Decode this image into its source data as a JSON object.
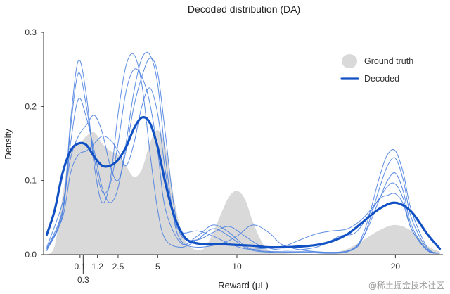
{
  "chart_data": {
    "type": "area",
    "title": "Decoded distribution (DA)",
    "xlabel": "Reward (μL)",
    "ylabel": "Density",
    "ylim": [
      0,
      0.3
    ],
    "yticks": [
      {
        "value": 0.0,
        "label": "0.0"
      },
      {
        "value": 0.1,
        "label": "0.1"
      },
      {
        "value": 0.2,
        "label": "0.2"
      },
      {
        "value": 0.3,
        "label": "0.3"
      }
    ],
    "xtick_labels": [
      {
        "label": "0.1",
        "x": 0.1
      },
      {
        "label": "0.3",
        "x": 0.3
      },
      {
        "label": "1.2",
        "x": 1.2
      },
      {
        "label": "2.5",
        "x": 2.5
      },
      {
        "label": "5",
        "x": 5
      },
      {
        "label": "10",
        "x": 10
      },
      {
        "label": "20",
        "x": 20
      }
    ],
    "legend": {
      "placement": "top-right"
    },
    "ground_truth": {
      "name": "Ground truth",
      "color": "#d9d9d9",
      "points": [
        [
          -2.0,
          0.0
        ],
        [
          -1.5,
          0.012
        ],
        [
          -1.0,
          0.08
        ],
        [
          -0.5,
          0.14
        ],
        [
          0.1,
          0.15
        ],
        [
          0.5,
          0.16
        ],
        [
          1.0,
          0.165
        ],
        [
          1.5,
          0.15
        ],
        [
          2.0,
          0.14
        ],
        [
          2.5,
          0.135
        ],
        [
          3.0,
          0.12
        ],
        [
          3.5,
          0.105
        ],
        [
          4.0,
          0.115
        ],
        [
          4.5,
          0.15
        ],
        [
          5.0,
          0.168
        ],
        [
          5.5,
          0.145
        ],
        [
          6.0,
          0.08
        ],
        [
          6.5,
          0.03
        ],
        [
          7.0,
          0.012
        ],
        [
          7.5,
          0.006
        ],
        [
          8.0,
          0.01
        ],
        [
          8.5,
          0.03
        ],
        [
          9.0,
          0.055
        ],
        [
          9.5,
          0.078
        ],
        [
          10.0,
          0.086
        ],
        [
          10.5,
          0.075
        ],
        [
          11.0,
          0.045
        ],
        [
          11.5,
          0.02
        ],
        [
          12.0,
          0.006
        ],
        [
          13.0,
          0.002
        ],
        [
          14.0,
          0.001
        ],
        [
          15.0,
          0.001
        ],
        [
          16.0,
          0.002
        ],
        [
          17.0,
          0.008
        ],
        [
          18.0,
          0.02
        ],
        [
          19.0,
          0.033
        ],
        [
          20.0,
          0.04
        ],
        [
          21.0,
          0.032
        ],
        [
          22.0,
          0.012
        ],
        [
          22.8,
          0.004
        ]
      ]
    },
    "decoded": {
      "name": "Decoded",
      "color": "#1151c4",
      "points": [
        [
          -2.0,
          0.027
        ],
        [
          -1.5,
          0.06
        ],
        [
          -1.0,
          0.11
        ],
        [
          -0.5,
          0.14
        ],
        [
          0.0,
          0.15
        ],
        [
          0.5,
          0.148
        ],
        [
          1.0,
          0.132
        ],
        [
          1.5,
          0.12
        ],
        [
          2.0,
          0.12
        ],
        [
          2.5,
          0.128
        ],
        [
          3.0,
          0.145
        ],
        [
          3.5,
          0.17
        ],
        [
          4.0,
          0.185
        ],
        [
          4.5,
          0.178
        ],
        [
          5.0,
          0.145
        ],
        [
          5.5,
          0.095
        ],
        [
          6.0,
          0.055
        ],
        [
          6.5,
          0.03
        ],
        [
          7.0,
          0.018
        ],
        [
          8.0,
          0.014
        ],
        [
          9.0,
          0.014
        ],
        [
          10.0,
          0.013
        ],
        [
          11.0,
          0.012
        ],
        [
          12.0,
          0.01
        ],
        [
          13.0,
          0.01
        ],
        [
          14.0,
          0.011
        ],
        [
          15.0,
          0.013
        ],
        [
          16.0,
          0.018
        ],
        [
          17.0,
          0.028
        ],
        [
          18.0,
          0.045
        ],
        [
          19.0,
          0.062
        ],
        [
          20.0,
          0.07
        ],
        [
          21.0,
          0.058
        ],
        [
          22.0,
          0.028
        ],
        [
          22.8,
          0.008
        ]
      ]
    },
    "individual_runs": {
      "color": "#4a7fe0",
      "series": [
        {
          "points": [
            [
              -2.0,
              0.005
            ],
            [
              -1.0,
              0.06
            ],
            [
              -0.5,
              0.18
            ],
            [
              0.0,
              0.262
            ],
            [
              0.5,
              0.215
            ],
            [
              1.0,
              0.12
            ],
            [
              1.5,
              0.07
            ],
            [
              2.0,
              0.1
            ],
            [
              2.5,
              0.19
            ],
            [
              3.0,
              0.255
            ],
            [
              3.5,
              0.27
            ],
            [
              4.0,
              0.23
            ],
            [
              4.5,
              0.14
            ],
            [
              5.0,
              0.06
            ],
            [
              5.5,
              0.02
            ],
            [
              6.5,
              0.01
            ],
            [
              7.5,
              0.02
            ],
            [
              8.5,
              0.035
            ],
            [
              9.5,
              0.025
            ],
            [
              10.5,
              0.01
            ],
            [
              11.5,
              0.004
            ],
            [
              14.0,
              0.003
            ],
            [
              17.0,
              0.004
            ],
            [
              18.0,
              0.03
            ],
            [
              19.0,
              0.105
            ],
            [
              19.5,
              0.135
            ],
            [
              20.0,
              0.14
            ],
            [
              20.5,
              0.11
            ],
            [
              21.0,
              0.06
            ],
            [
              22.0,
              0.01
            ],
            [
              22.8,
              0.002
            ]
          ]
        },
        {
          "points": [
            [
              -2.0,
              0.006
            ],
            [
              -1.0,
              0.055
            ],
            [
              -0.5,
              0.17
            ],
            [
              0.0,
              0.245
            ],
            [
              0.5,
              0.2
            ],
            [
              1.0,
              0.13
            ],
            [
              1.5,
              0.085
            ],
            [
              2.0,
              0.095
            ],
            [
              2.5,
              0.15
            ],
            [
              3.0,
              0.22
            ],
            [
              3.5,
              0.25
            ],
            [
              4.0,
              0.24
            ],
            [
              4.5,
              0.205
            ],
            [
              5.0,
              0.14
            ],
            [
              5.5,
              0.06
            ],
            [
              6.5,
              0.015
            ],
            [
              7.5,
              0.025
            ],
            [
              8.5,
              0.04
            ],
            [
              9.5,
              0.03
            ],
            [
              10.5,
              0.012
            ],
            [
              11.5,
              0.005
            ],
            [
              14.0,
              0.004
            ],
            [
              17.0,
              0.005
            ],
            [
              18.0,
              0.025
            ],
            [
              19.0,
              0.09
            ],
            [
              19.5,
              0.12
            ],
            [
              20.0,
              0.13
            ],
            [
              20.5,
              0.1
            ],
            [
              21.0,
              0.05
            ],
            [
              22.0,
              0.008
            ],
            [
              22.8,
              0.002
            ]
          ]
        },
        {
          "points": [
            [
              -2.0,
              0.008
            ],
            [
              -1.0,
              0.06
            ],
            [
              -0.5,
              0.15
            ],
            [
              0.0,
              0.21
            ],
            [
              0.5,
              0.185
            ],
            [
              1.0,
              0.14
            ],
            [
              1.5,
              0.09
            ],
            [
              2.0,
              0.07
            ],
            [
              2.5,
              0.09
            ],
            [
              3.0,
              0.15
            ],
            [
              3.5,
              0.22
            ],
            [
              4.0,
              0.265
            ],
            [
              4.5,
              0.27
            ],
            [
              5.0,
              0.23
            ],
            [
              5.5,
              0.13
            ],
            [
              6.0,
              0.05
            ],
            [
              6.5,
              0.018
            ],
            [
              7.5,
              0.01
            ],
            [
              9.0,
              0.015
            ],
            [
              10.0,
              0.025
            ],
            [
              11.0,
              0.04
            ],
            [
              12.0,
              0.03
            ],
            [
              13.0,
              0.012
            ],
            [
              15.0,
              0.004
            ],
            [
              17.0,
              0.005
            ],
            [
              18.0,
              0.025
            ],
            [
              19.0,
              0.075
            ],
            [
              19.5,
              0.1
            ],
            [
              20.0,
              0.11
            ],
            [
              20.5,
              0.085
            ],
            [
              21.0,
              0.04
            ],
            [
              22.0,
              0.006
            ],
            [
              22.8,
              0.002
            ]
          ]
        },
        {
          "points": [
            [
              -2.0,
              0.01
            ],
            [
              -1.0,
              0.07
            ],
            [
              -0.5,
              0.13
            ],
            [
              0.0,
              0.16
            ],
            [
              0.5,
              0.175
            ],
            [
              1.0,
              0.188
            ],
            [
              1.5,
              0.165
            ],
            [
              2.0,
              0.12
            ],
            [
              2.5,
              0.1
            ],
            [
              3.0,
              0.14
            ],
            [
              3.5,
              0.2
            ],
            [
              4.0,
              0.24
            ],
            [
              4.5,
              0.265
            ],
            [
              5.0,
              0.245
            ],
            [
              5.5,
              0.16
            ],
            [
              6.0,
              0.07
            ],
            [
              6.5,
              0.025
            ],
            [
              7.5,
              0.02
            ],
            [
              8.5,
              0.03
            ],
            [
              9.5,
              0.038
            ],
            [
              10.5,
              0.025
            ],
            [
              11.5,
              0.012
            ],
            [
              13.0,
              0.006
            ],
            [
              15.0,
              0.01
            ],
            [
              16.5,
              0.025
            ],
            [
              17.5,
              0.03
            ],
            [
              18.5,
              0.06
            ],
            [
              19.5,
              0.092
            ],
            [
              20.0,
              0.095
            ],
            [
              20.5,
              0.075
            ],
            [
              21.0,
              0.035
            ],
            [
              22.0,
              0.006
            ],
            [
              22.8,
              0.002
            ]
          ]
        },
        {
          "points": [
            [
              -2.0,
              0.008
            ],
            [
              -1.0,
              0.05
            ],
            [
              -0.5,
              0.11
            ],
            [
              0.0,
              0.135
            ],
            [
              0.5,
              0.14
            ],
            [
              1.0,
              0.15
            ],
            [
              1.5,
              0.16
            ],
            [
              2.0,
              0.155
            ],
            [
              2.5,
              0.14
            ],
            [
              3.0,
              0.12
            ],
            [
              3.5,
              0.15
            ],
            [
              4.0,
              0.2
            ],
            [
              4.5,
              0.225
            ],
            [
              5.0,
              0.19
            ],
            [
              5.5,
              0.11
            ],
            [
              6.0,
              0.05
            ],
            [
              6.5,
              0.03
            ],
            [
              7.5,
              0.032
            ],
            [
              8.5,
              0.025
            ],
            [
              9.5,
              0.015
            ],
            [
              10.5,
              0.008
            ],
            [
              11.5,
              0.008
            ],
            [
              13.0,
              0.012
            ],
            [
              14.0,
              0.02
            ],
            [
              15.0,
              0.028
            ],
            [
              16.0,
              0.032
            ],
            [
              17.0,
              0.035
            ],
            [
              18.0,
              0.05
            ],
            [
              19.0,
              0.075
            ],
            [
              19.5,
              0.08
            ],
            [
              20.0,
              0.082
            ],
            [
              20.5,
              0.068
            ],
            [
              21.0,
              0.035
            ],
            [
              22.0,
              0.006
            ],
            [
              22.8,
              0.002
            ]
          ]
        }
      ]
    }
  },
  "watermark": "@稀土掘金技术社区"
}
